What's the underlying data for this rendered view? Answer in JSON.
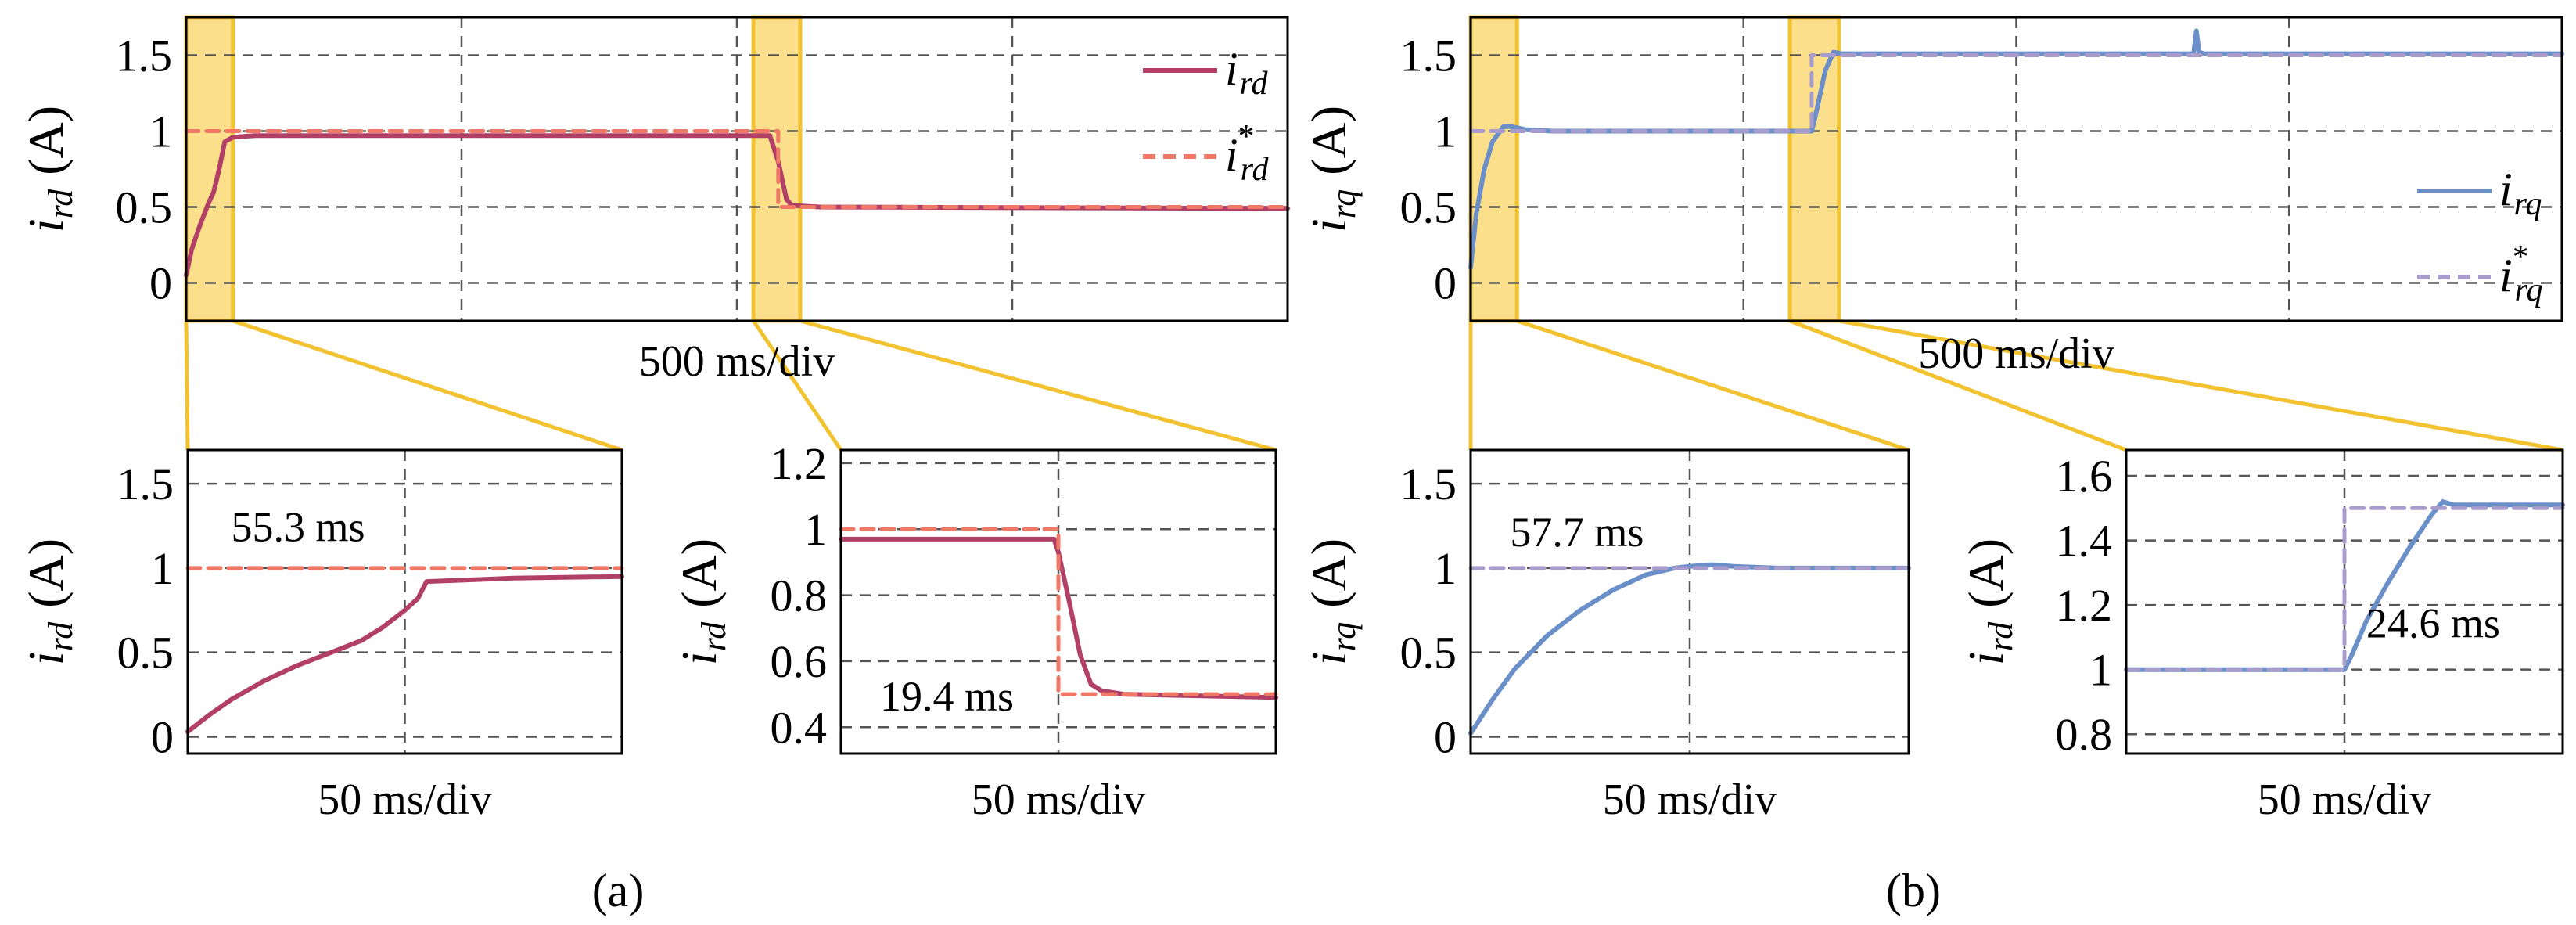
{
  "colors": {
    "ird": "#b24066",
    "ird_ref": "#f07866",
    "irq": "#6b8fc8",
    "irq_ref": "#a79ccc",
    "highlight_fill": "#fbdf8a",
    "highlight_stroke": "#f2c230",
    "grid": "#555555"
  },
  "captions": {
    "a": "(a)",
    "b": "(b)"
  },
  "chart_data": [
    {
      "id": "a-main",
      "type": "line",
      "xlabel": "500 ms/div",
      "ylabel_symbol": "i",
      "ylabel_sub": "rd",
      "ylabel_unit": "(A)",
      "ylim": [
        -0.25,
        1.75
      ],
      "xlim": [
        0,
        4
      ],
      "yticks": [
        "0",
        "0.5",
        "1",
        "1.5"
      ],
      "ytick_values": [
        0,
        0.5,
        1,
        1.5
      ],
      "legend": [
        {
          "symbol": "i",
          "sub": "rd",
          "sup": ""
        },
        {
          "symbol": "i",
          "sub": "rd",
          "sup": "*"
        }
      ],
      "highlight_ranges": [
        [
          0,
          0.17
        ],
        [
          2.06,
          2.23
        ]
      ],
      "series": [
        {
          "name": "i_rd",
          "style": "solid",
          "color_key": "ird",
          "x": [
            0,
            0.02,
            0.05,
            0.08,
            0.1,
            0.12,
            0.14,
            0.17,
            0.25,
            2.12,
            2.15,
            2.18,
            2.2,
            2.3,
            4
          ],
          "y": [
            0.05,
            0.22,
            0.38,
            0.52,
            0.6,
            0.75,
            0.93,
            0.96,
            0.97,
            0.97,
            0.8,
            0.55,
            0.51,
            0.5,
            0.49
          ]
        },
        {
          "name": "i_rd*",
          "style": "dashed",
          "color_key": "ird_ref",
          "x": [
            0,
            2.15,
            2.15,
            4
          ],
          "y": [
            1,
            1,
            0.5,
            0.5
          ]
        }
      ]
    },
    {
      "id": "b-main",
      "type": "line",
      "xlabel": "500 ms/div",
      "ylabel_symbol": "i",
      "ylabel_sub": "rq",
      "ylabel_unit": "(A)",
      "ylim": [
        -0.25,
        1.75
      ],
      "xlim": [
        0,
        4
      ],
      "yticks": [
        "0",
        "0.5",
        "1",
        "1.5"
      ],
      "ytick_values": [
        0,
        0.5,
        1,
        1.5
      ],
      "legend": [
        {
          "symbol": "i",
          "sub": "rq",
          "sup": ""
        },
        {
          "symbol": "i",
          "sub": "rq",
          "sup": "*"
        }
      ],
      "highlight_ranges": [
        [
          0,
          0.17
        ],
        [
          1.17,
          1.35
        ]
      ],
      "series": [
        {
          "name": "i_rq",
          "style": "solid",
          "color_key": "irq",
          "x": [
            0,
            0.02,
            0.05,
            0.08,
            0.12,
            0.15,
            0.2,
            0.3,
            1.25,
            1.27,
            1.3,
            1.33,
            1.36,
            2.0,
            2.65,
            2.66,
            2.67,
            2.69,
            4
          ],
          "y": [
            0.1,
            0.45,
            0.75,
            0.93,
            1.03,
            1.03,
            1.01,
            1.0,
            1.0,
            1.15,
            1.4,
            1.52,
            1.51,
            1.51,
            1.51,
            1.66,
            1.52,
            1.51,
            1.51
          ]
        },
        {
          "name": "i_rq*",
          "style": "dashed",
          "color_key": "irq_ref",
          "x": [
            0,
            1.25,
            1.25,
            4
          ],
          "y": [
            1,
            1,
            1.5,
            1.5
          ]
        }
      ]
    },
    {
      "id": "a-zoom1",
      "type": "line",
      "xlabel": "50 ms/div",
      "ylabel_symbol": "i",
      "ylabel_sub": "rd",
      "ylabel_unit": "(A)",
      "ylim": [
        -0.1,
        1.7
      ],
      "xlim": [
        0,
        2
      ],
      "yticks": [
        "0",
        "0.5",
        "1",
        "1.5"
      ],
      "ytick_values": [
        0,
        0.5,
        1,
        1.5
      ],
      "annotation": "55.3 ms",
      "annotation_pos": [
        0.2,
        1.16
      ],
      "series": [
        {
          "name": "i_rd",
          "style": "solid",
          "color_key": "ird",
          "x": [
            0,
            0.1,
            0.2,
            0.35,
            0.5,
            0.7,
            0.8,
            0.9,
            1.0,
            1.06,
            1.1,
            1.5,
            2.0
          ],
          "y": [
            0.03,
            0.13,
            0.22,
            0.33,
            0.42,
            0.52,
            0.57,
            0.65,
            0.75,
            0.82,
            0.92,
            0.94,
            0.95
          ]
        },
        {
          "name": "i_rd*",
          "style": "dashed",
          "color_key": "ird_ref",
          "x": [
            0,
            2
          ],
          "y": [
            1,
            1
          ]
        }
      ]
    },
    {
      "id": "a-zoom2",
      "type": "line",
      "xlabel": "50 ms/div",
      "ylabel_symbol": "i",
      "ylabel_sub": "rd",
      "ylabel_unit": "(A)",
      "ylim": [
        0.32,
        1.24
      ],
      "xlim": [
        0,
        2
      ],
      "yticks": [
        "0.4",
        "0.6",
        "0.8",
        "1",
        "1.2"
      ],
      "ytick_values": [
        0.4,
        0.6,
        0.8,
        1,
        1.2
      ],
      "annotation": "19.4 ms",
      "annotation_pos": [
        0.18,
        0.45
      ],
      "series": [
        {
          "name": "i_rd",
          "style": "solid",
          "color_key": "ird",
          "x": [
            0,
            0.98,
            1.0,
            1.05,
            1.1,
            1.15,
            1.2,
            1.3,
            2.0
          ],
          "y": [
            0.97,
            0.97,
            0.93,
            0.78,
            0.62,
            0.53,
            0.51,
            0.5,
            0.49
          ]
        },
        {
          "name": "i_rd*",
          "style": "dashed",
          "color_key": "ird_ref",
          "x": [
            0,
            1.0,
            1.0,
            2.0
          ],
          "y": [
            1,
            1,
            0.5,
            0.5
          ]
        }
      ]
    },
    {
      "id": "b-zoom1",
      "type": "line",
      "xlabel": "50 ms/div",
      "ylabel_symbol": "i",
      "ylabel_sub": "rq",
      "ylabel_unit": "(A)",
      "ylim": [
        -0.1,
        1.7
      ],
      "xlim": [
        0,
        2
      ],
      "yticks": [
        "0",
        "0.5",
        "1",
        "1.5"
      ],
      "ytick_values": [
        0,
        0.5,
        1,
        1.5
      ],
      "annotation": "57.7 ms",
      "annotation_pos": [
        0.18,
        1.13
      ],
      "series": [
        {
          "name": "i_rq",
          "style": "solid",
          "color_key": "irq",
          "x": [
            0,
            0.1,
            0.2,
            0.35,
            0.5,
            0.65,
            0.8,
            0.93,
            1.0,
            1.1,
            1.2,
            1.4,
            2.0
          ],
          "y": [
            0.02,
            0.22,
            0.4,
            0.6,
            0.75,
            0.87,
            0.96,
            1.0,
            1.01,
            1.02,
            1.01,
            1.0,
            1.0
          ]
        },
        {
          "name": "i_rq*",
          "style": "dashed",
          "color_key": "irq_ref",
          "x": [
            0,
            2
          ],
          "y": [
            1,
            1
          ]
        }
      ]
    },
    {
      "id": "b-zoom2",
      "type": "line",
      "xlabel": "50 ms/div",
      "ylabel_symbol": "i",
      "ylabel_sub": "rd",
      "ylabel_unit": "(A)",
      "ylim": [
        0.74,
        1.68
      ],
      "xlim": [
        0,
        2
      ],
      "yticks": [
        "0.8",
        "1",
        "1.2",
        "1.4",
        "1.6"
      ],
      "ytick_values": [
        0.8,
        1,
        1.2,
        1.4,
        1.6
      ],
      "annotation": "24.6 ms",
      "annotation_pos": [
        1.1,
        1.1
      ],
      "series": [
        {
          "name": "i_rq",
          "style": "solid",
          "color_key": "irq",
          "x": [
            0,
            1.0,
            1.03,
            1.1,
            1.2,
            1.3,
            1.4,
            1.45,
            1.5,
            1.6,
            2.0
          ],
          "y": [
            1,
            1,
            1.04,
            1.15,
            1.27,
            1.38,
            1.48,
            1.52,
            1.51,
            1.51,
            1.51
          ]
        },
        {
          "name": "i_rq*",
          "style": "dashed",
          "color_key": "irq_ref",
          "x": [
            0,
            1.0,
            1.0,
            2.0
          ],
          "y": [
            1,
            1,
            1.5,
            1.5
          ]
        }
      ]
    }
  ]
}
